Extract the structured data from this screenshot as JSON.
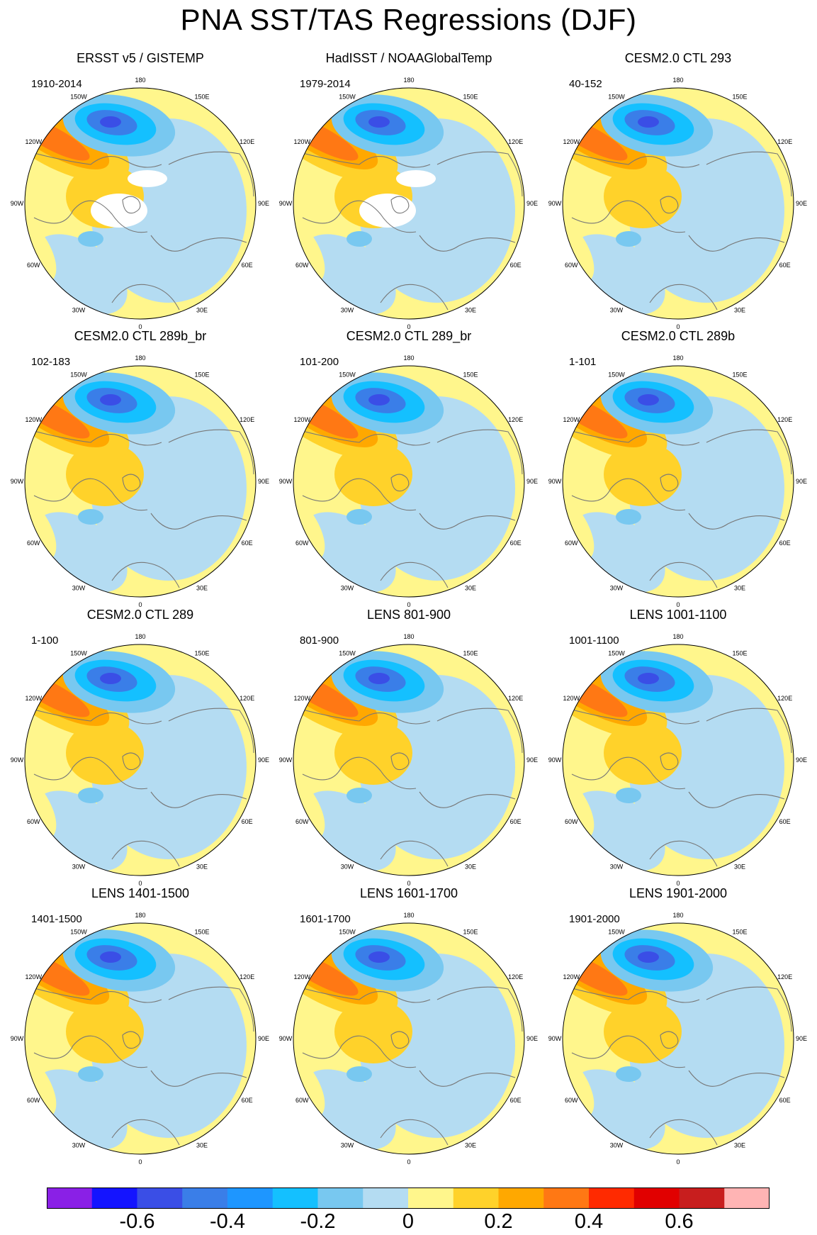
{
  "title": "PNA SST/TAS Regressions (DJF)",
  "lon_labels": [
    "180",
    "150E",
    "120E",
    "90E",
    "60E",
    "30E",
    "0",
    "30W",
    "60W",
    "90W",
    "120W",
    "150W"
  ],
  "panels": [
    {
      "title": "ERSST v5 / GISTEMP",
      "period": "1910-2014",
      "missing": true
    },
    {
      "title": "HadISST / NOAAGlobalTemp",
      "period": "1979-2014",
      "missing": true
    },
    {
      "title": "CESM2.0 CTL 293",
      "period": "40-152"
    },
    {
      "title": "CESM2.0 CTL 289b_br",
      "period": "102-183"
    },
    {
      "title": "CESM2.0 CTL 289_br",
      "period": "101-200"
    },
    {
      "title": "CESM2.0 CTL 289b",
      "period": "1-101"
    },
    {
      "title": "CESM2.0 CTL 289",
      "period": "1-100"
    },
    {
      "title": "LENS 801-900",
      "period": "801-900"
    },
    {
      "title": "LENS 1001-1100",
      "period": "1001-1100"
    },
    {
      "title": "LENS 1401-1500",
      "period": "1401-1500"
    },
    {
      "title": "LENS 1601-1700",
      "period": "1601-1700"
    },
    {
      "title": "LENS 1901-2000",
      "period": "1901-2000"
    }
  ],
  "chart_data": {
    "type": "heatmap",
    "projection": "north-polar-stereographic",
    "title": "PNA SST/TAS Regressions (DJF)",
    "colorbar": {
      "levels": [
        -0.7,
        -0.6,
        -0.5,
        -0.4,
        -0.3,
        -0.2,
        -0.1,
        0,
        0.1,
        0.2,
        0.3,
        0.4,
        0.5,
        0.6,
        0.7
      ],
      "colors": [
        "#8a20e6",
        "#1414ff",
        "#3a4ee6",
        "#3a7ee8",
        "#1e96ff",
        "#14c0ff",
        "#78c8f0",
        "#b4dcf2",
        "#fff68c",
        "#ffd22a",
        "#ffa800",
        "#ff7814",
        "#ff2a00",
        "#e10000",
        "#c81e1e",
        "#ffb4b4"
      ],
      "tick_labels": [
        "-0.6",
        "-0.4",
        "-0.2",
        "0",
        "0.2",
        "0.4",
        "0.6"
      ],
      "tick_values": [
        -0.6,
        -0.4,
        -0.2,
        0,
        0.2,
        0.4,
        0.6
      ]
    }
  }
}
